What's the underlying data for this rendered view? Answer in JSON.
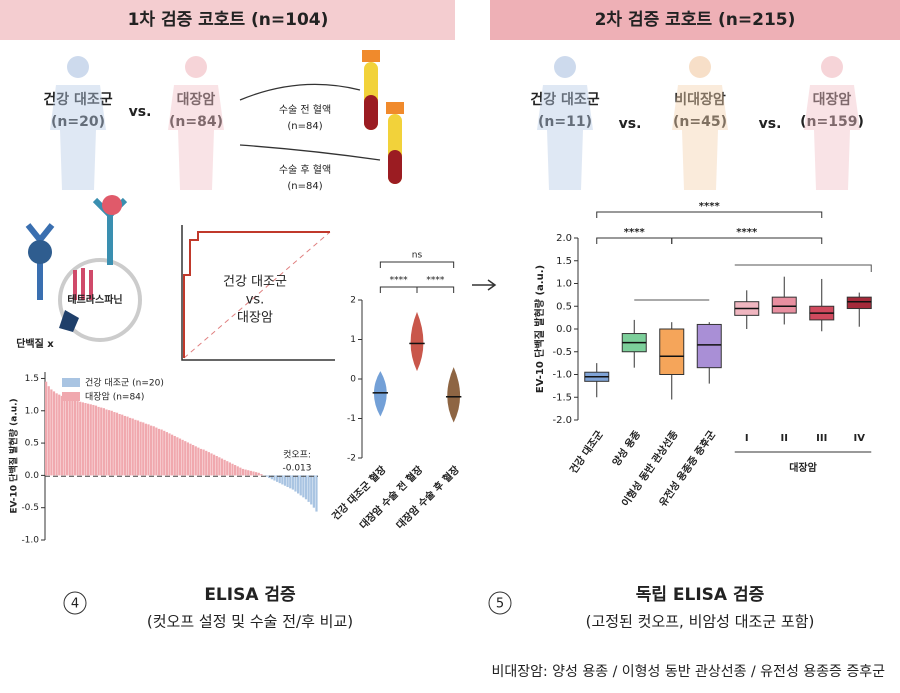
{
  "header": {
    "left": "1차 검증 코호트 (n=104)",
    "right": "2차 검증 코호트 (n=215)"
  },
  "cohort1": {
    "groups": [
      {
        "label": "건강 대조군",
        "n": "(n=20)"
      },
      {
        "label": "대장암",
        "n": "(n=84)"
      }
    ],
    "vs": "vs.",
    "samples": [
      {
        "label": "수술 전 혈액",
        "n": "(n=84)"
      },
      {
        "label": "수술 후 혈액",
        "n": "(n=84)"
      }
    ]
  },
  "cohort2": {
    "groups": [
      {
        "label": "건강 대조군",
        "n": "(n=11)"
      },
      {
        "label": "비대장암",
        "n": "(n=45)"
      },
      {
        "label": "대장암",
        "n": "(n=159)"
      }
    ],
    "vs": "vs."
  },
  "diagram": {
    "tetraspanin": "테트라스파닌",
    "protein": "단백질 x",
    "roc_label": [
      "건강 대조군",
      "vs.",
      "대장암"
    ]
  },
  "chart_data": [
    {
      "type": "bar",
      "ylabel": "EV-10 단백질 발현량 (a.u.)",
      "ylim": [
        -1.0,
        1.6
      ],
      "yticks": [
        {
          "value": -1.0,
          "label": "-1.0"
        },
        -0.5,
        {
          "value": 0.0,
          "label": "0.0"
        },
        0.5,
        {
          "value": 1.0,
          "label": "1.0"
        },
        1.5
      ],
      "cutoff_title": "컷오프:",
      "cutoff": -0.013,
      "series": [
        {
          "name": "대장암 (n=84)",
          "color": "#f0a8ae",
          "values": [
            1.45,
            1.38,
            1.33,
            1.3,
            1.27,
            1.25,
            1.23,
            1.21,
            1.2,
            1.18,
            1.17,
            1.16,
            1.15,
            1.14,
            1.13,
            1.12,
            1.11,
            1.1,
            1.09,
            1.08,
            1.06,
            1.05,
            1.04,
            1.02,
            1.01,
            1.0,
            0.98,
            0.97,
            0.95,
            0.94,
            0.92,
            0.91,
            0.89,
            0.88,
            0.86,
            0.85,
            0.83,
            0.82,
            0.8,
            0.79,
            0.77,
            0.76,
            0.74,
            0.72,
            0.71,
            0.69,
            0.67,
            0.65,
            0.63,
            0.61,
            0.59,
            0.57,
            0.55,
            0.53,
            0.51,
            0.49,
            0.47,
            0.45,
            0.43,
            0.41,
            0.4,
            0.38,
            0.36,
            0.34,
            0.32,
            0.3,
            0.28,
            0.26,
            0.24,
            0.22,
            0.2,
            0.18,
            0.16,
            0.14,
            0.12,
            0.1,
            0.09,
            0.08,
            0.07,
            0.06,
            0.05,
            0.04,
            0.02,
            0.0
          ]
        },
        {
          "name": "건강 대조군 (n=20)",
          "color": "#a9c4e2",
          "values": [
            -0.02,
            -0.04,
            -0.06,
            -0.08,
            -0.1,
            -0.12,
            -0.14,
            -0.16,
            -0.18,
            -0.2,
            -0.22,
            -0.25,
            -0.28,
            -0.31,
            -0.34,
            -0.37,
            -0.41,
            -0.45,
            -0.5,
            -0.56
          ]
        }
      ]
    },
    {
      "type": "violin",
      "categories": [
        "건강 대조군 혈장",
        "대장암 수술 전 혈장",
        "대장암 수술 후 혈장"
      ],
      "values": [
        -0.35,
        0.9,
        -0.45
      ],
      "mins": [
        -0.95,
        0.2,
        -1.1
      ],
      "maxs": [
        0.2,
        1.7,
        0.3
      ],
      "colors": [
        "#5b8fd0",
        "#c0392b",
        "#7a4a22"
      ],
      "significance": [
        "ns",
        "****",
        "****"
      ],
      "ylim": [
        -2,
        2
      ],
      "yticks": [
        -2,
        -1,
        0,
        1,
        2
      ]
    },
    {
      "type": "box",
      "ylabel": "EV-10 단백질 발현량 (a.u.)",
      "categories": [
        "건강 대조군",
        "양성 용종",
        "이형성 동반 관상선종",
        "유전성 용종증 증후군",
        "I",
        "II",
        "III",
        "IV"
      ],
      "group_label": "대장암",
      "mins": [
        -1.5,
        -0.85,
        -1.55,
        -1.2,
        0.0,
        0.1,
        -0.05,
        0.05
      ],
      "q1": [
        -1.15,
        -0.5,
        -1.0,
        -0.85,
        0.3,
        0.35,
        0.2,
        0.45
      ],
      "medians": [
        -1.05,
        -0.3,
        -0.6,
        -0.35,
        0.45,
        0.5,
        0.35,
        0.6
      ],
      "q3": [
        -0.95,
        -0.1,
        0.0,
        0.1,
        0.6,
        0.7,
        0.5,
        0.7
      ],
      "maxs": [
        -0.75,
        0.2,
        0.15,
        0.15,
        0.85,
        1.15,
        1.1,
        0.8
      ],
      "colors": [
        "#7fa3d6",
        "#7ccf9a",
        "#f5a55a",
        "#a98fd6",
        "#f0b6c0",
        "#e88fa0",
        "#d04a5e",
        "#a52a3a"
      ],
      "significance": [
        "****",
        "****",
        "****"
      ],
      "ylim": [
        -2.0,
        2.0
      ],
      "yticks": [
        {
          "value": -2.0,
          "label": "-2.0"
        },
        -1.5,
        {
          "value": -1.0,
          "label": "-1.0"
        },
        -0.5,
        {
          "value": 0.0,
          "label": "0.0"
        },
        0.5,
        {
          "value": 1.0,
          "label": "1.0"
        },
        1.5,
        {
          "value": 2.0,
          "label": "2.0"
        }
      ]
    }
  ],
  "footer": {
    "left_number": "4",
    "left_title": "ELISA 검증",
    "left_subtitle": "(컷오프 설정 및 수술 전/후 비교)",
    "right_number": "5",
    "right_title": "독립 ELISA 검증",
    "right_subtitle": "(고정된 컷오프, 비암성 대조군 포함)",
    "note": "비대장암: 양성 용종 / 이형성 동반 관상선종 / 유전성 용종증 증후군"
  }
}
